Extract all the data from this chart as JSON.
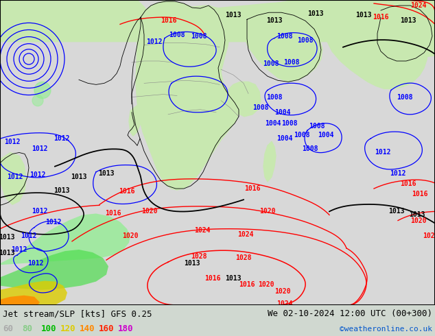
{
  "title_left": "Jet stream/SLP [kts] GFS 0.25",
  "title_right": "We 02-10-2024 12:00 UTC (00+300)",
  "copyright": "©weatheronline.co.uk",
  "legend_values": [
    "60",
    "80",
    "100",
    "120",
    "140",
    "160",
    "180"
  ],
  "legend_colors": [
    "#aaaaaa",
    "#88cc88",
    "#00bb00",
    "#ddcc00",
    "#ff8800",
    "#ff2200",
    "#cc00cc"
  ],
  "ocean_color": "#d8d8d8",
  "land_color": "#c8e8b0",
  "border_color": "#888888",
  "bottom_bg": "#d0d8d0",
  "font_size_title": 9,
  "font_size_legend": 9,
  "font_size_copyright": 8,
  "fig_width": 6.34,
  "fig_height": 4.9,
  "dpi": 100,
  "jet_green_light": "#90ee90",
  "jet_green": "#00cc00",
  "jet_yellow": "#dddd00",
  "jet_orange": "#ff8800",
  "jet_red": "#ff2200"
}
